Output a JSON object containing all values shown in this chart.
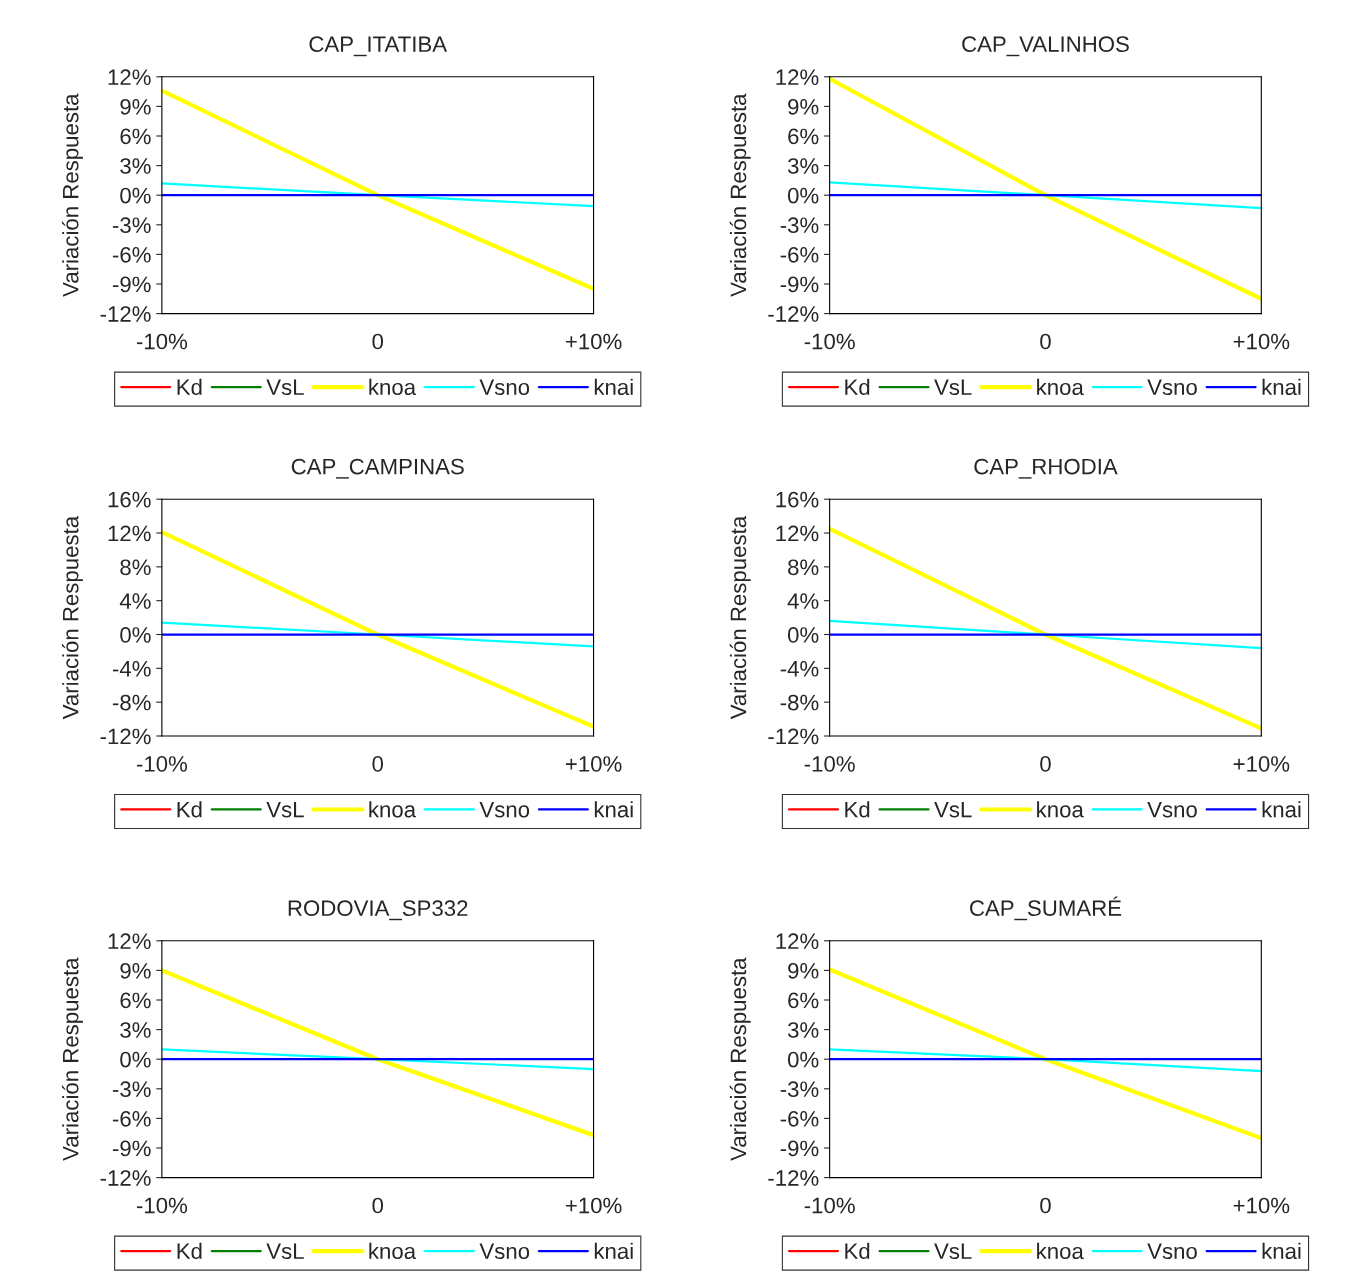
{
  "chart_data": [
    {
      "type": "line",
      "title": "CAP_ITATIBA",
      "ylabel": "Variación Respuesta",
      "categories": [
        "-10%",
        "0",
        "+10%"
      ],
      "ylim": [
        -12,
        12
      ],
      "yticks": [
        {
          "value": -12,
          "label": "-12%"
        },
        {
          "value": -9,
          "label": "-9%"
        },
        {
          "value": -6,
          "label": "-6%"
        },
        {
          "value": -3,
          "label": "-3%"
        },
        {
          "value": 0,
          "label": "0%"
        },
        {
          "value": 3,
          "label": "3%"
        },
        {
          "value": 6,
          "label": "6%"
        },
        {
          "value": 9,
          "label": "9%"
        },
        {
          "value": 12,
          "label": "12%"
        }
      ],
      "grid": false,
      "legend": "bottom",
      "series": [
        {
          "name": "Kd",
          "color": "#ff0000",
          "values": [
            null,
            null,
            null
          ]
        },
        {
          "name": "VsL",
          "color": "#008000",
          "values": [
            null,
            null,
            null
          ]
        },
        {
          "name": "knoa",
          "color": "#ffff00",
          "values": [
            10.6,
            0,
            -9.5
          ]
        },
        {
          "name": "Vsno",
          "color": "#00ffff",
          "values": [
            1.2,
            0,
            -1.1
          ]
        },
        {
          "name": "knai",
          "color": "#0000ff",
          "values": [
            0,
            0,
            0
          ]
        }
      ]
    },
    {
      "type": "line",
      "title": "CAP_VALINHOS",
      "ylabel": "Variación Respuesta",
      "categories": [
        "-10%",
        "0",
        "+10%"
      ],
      "ylim": [
        -12,
        12
      ],
      "yticks": [
        {
          "value": -12,
          "label": "-12%"
        },
        {
          "value": -9,
          "label": "-9%"
        },
        {
          "value": -6,
          "label": "-6%"
        },
        {
          "value": -3,
          "label": "-3%"
        },
        {
          "value": 0,
          "label": "0%"
        },
        {
          "value": 3,
          "label": "3%"
        },
        {
          "value": 6,
          "label": "6%"
        },
        {
          "value": 9,
          "label": "9%"
        },
        {
          "value": 12,
          "label": "12%"
        }
      ],
      "grid": false,
      "legend": "bottom",
      "series": [
        {
          "name": "Kd",
          "color": "#ff0000",
          "values": [
            null,
            null,
            null
          ]
        },
        {
          "name": "VsL",
          "color": "#008000",
          "values": [
            null,
            null,
            null
          ]
        },
        {
          "name": "knoa",
          "color": "#ffff00",
          "values": [
            11.8,
            0,
            -10.5
          ]
        },
        {
          "name": "Vsno",
          "color": "#00ffff",
          "values": [
            1.3,
            0,
            -1.3
          ]
        },
        {
          "name": "knai",
          "color": "#0000ff",
          "values": [
            0,
            0,
            0
          ]
        }
      ]
    },
    {
      "type": "line",
      "title": "CAP_CAMPINAS",
      "ylabel": "Variación Respuesta",
      "categories": [
        "-10%",
        "0",
        "+10%"
      ],
      "ylim": [
        -12,
        16
      ],
      "yticks": [
        {
          "value": -12,
          "label": "-12%"
        },
        {
          "value": -8,
          "label": "-8%"
        },
        {
          "value": -4,
          "label": "-4%"
        },
        {
          "value": 0,
          "label": "0%"
        },
        {
          "value": 4,
          "label": "4%"
        },
        {
          "value": 8,
          "label": "8%"
        },
        {
          "value": 12,
          "label": "12%"
        },
        {
          "value": 16,
          "label": "16%"
        }
      ],
      "grid": false,
      "legend": "bottom",
      "series": [
        {
          "name": "Kd",
          "color": "#ff0000",
          "values": [
            null,
            null,
            null
          ]
        },
        {
          "name": "VsL",
          "color": "#008000",
          "values": [
            null,
            null,
            null
          ]
        },
        {
          "name": "knoa",
          "color": "#ffff00",
          "values": [
            12.1,
            0,
            -10.9
          ]
        },
        {
          "name": "Vsno",
          "color": "#00ffff",
          "values": [
            1.4,
            0,
            -1.4
          ]
        },
        {
          "name": "knai",
          "color": "#0000ff",
          "values": [
            0,
            0,
            0
          ]
        }
      ]
    },
    {
      "type": "line",
      "title": "CAP_RHODIA",
      "ylabel": "Variación Respuesta",
      "categories": [
        "-10%",
        "0",
        "+10%"
      ],
      "ylim": [
        -12,
        16
      ],
      "yticks": [
        {
          "value": -12,
          "label": "-12%"
        },
        {
          "value": -8,
          "label": "-8%"
        },
        {
          "value": -4,
          "label": "-4%"
        },
        {
          "value": 0,
          "label": "0%"
        },
        {
          "value": 4,
          "label": "4%"
        },
        {
          "value": 8,
          "label": "8%"
        },
        {
          "value": 12,
          "label": "12%"
        },
        {
          "value": 16,
          "label": "16%"
        }
      ],
      "grid": false,
      "legend": "bottom",
      "series": [
        {
          "name": "Kd",
          "color": "#ff0000",
          "values": [
            null,
            null,
            null
          ]
        },
        {
          "name": "VsL",
          "color": "#008000",
          "values": [
            null,
            null,
            null
          ]
        },
        {
          "name": "knoa",
          "color": "#ffff00",
          "values": [
            12.5,
            0,
            -11.1
          ]
        },
        {
          "name": "Vsno",
          "color": "#00ffff",
          "values": [
            1.6,
            0,
            -1.6
          ]
        },
        {
          "name": "knai",
          "color": "#0000ff",
          "values": [
            0,
            0,
            0
          ]
        }
      ]
    },
    {
      "type": "line",
      "title": "RODOVIA_SP332",
      "ylabel": "Variación Respuesta",
      "categories": [
        "-10%",
        "0",
        "+10%"
      ],
      "ylim": [
        -12,
        12
      ],
      "yticks": [
        {
          "value": -12,
          "label": "-12%"
        },
        {
          "value": -9,
          "label": "-9%"
        },
        {
          "value": -6,
          "label": "-6%"
        },
        {
          "value": -3,
          "label": "-3%"
        },
        {
          "value": 0,
          "label": "0%"
        },
        {
          "value": 3,
          "label": "3%"
        },
        {
          "value": 6,
          "label": "6%"
        },
        {
          "value": 9,
          "label": "9%"
        },
        {
          "value": 12,
          "label": "12%"
        }
      ],
      "grid": false,
      "legend": "bottom",
      "series": [
        {
          "name": "Kd",
          "color": "#ff0000",
          "values": [
            null,
            null,
            null
          ]
        },
        {
          "name": "VsL",
          "color": "#008000",
          "values": [
            null,
            null,
            null
          ]
        },
        {
          "name": "knoa",
          "color": "#ffff00",
          "values": [
            9.0,
            0,
            -7.7
          ]
        },
        {
          "name": "Vsno",
          "color": "#00ffff",
          "values": [
            1.0,
            0,
            -1.0
          ]
        },
        {
          "name": "knai",
          "color": "#0000ff",
          "values": [
            0,
            0,
            0
          ]
        }
      ]
    },
    {
      "type": "line",
      "title": "CAP_SUMARÉ",
      "ylabel": "Variación Respuesta",
      "categories": [
        "-10%",
        "0",
        "+10%"
      ],
      "ylim": [
        -12,
        12
      ],
      "yticks": [
        {
          "value": -12,
          "label": "-12%"
        },
        {
          "value": -9,
          "label": "-9%"
        },
        {
          "value": -6,
          "label": "-6%"
        },
        {
          "value": -3,
          "label": "-3%"
        },
        {
          "value": 0,
          "label": "0%"
        },
        {
          "value": 3,
          "label": "3%"
        },
        {
          "value": 6,
          "label": "6%"
        },
        {
          "value": 9,
          "label": "9%"
        },
        {
          "value": 12,
          "label": "12%"
        }
      ],
      "grid": false,
      "legend": "bottom",
      "series": [
        {
          "name": "Kd",
          "color": "#ff0000",
          "values": [
            null,
            null,
            null
          ]
        },
        {
          "name": "VsL",
          "color": "#008000",
          "values": [
            null,
            null,
            null
          ]
        },
        {
          "name": "knoa",
          "color": "#ffff00",
          "values": [
            9.1,
            0,
            -8.0
          ]
        },
        {
          "name": "Vsno",
          "color": "#00ffff",
          "values": [
            1.0,
            0,
            -1.2
          ]
        },
        {
          "name": "knai",
          "color": "#0000ff",
          "values": [
            0,
            0,
            0
          ]
        }
      ]
    }
  ]
}
